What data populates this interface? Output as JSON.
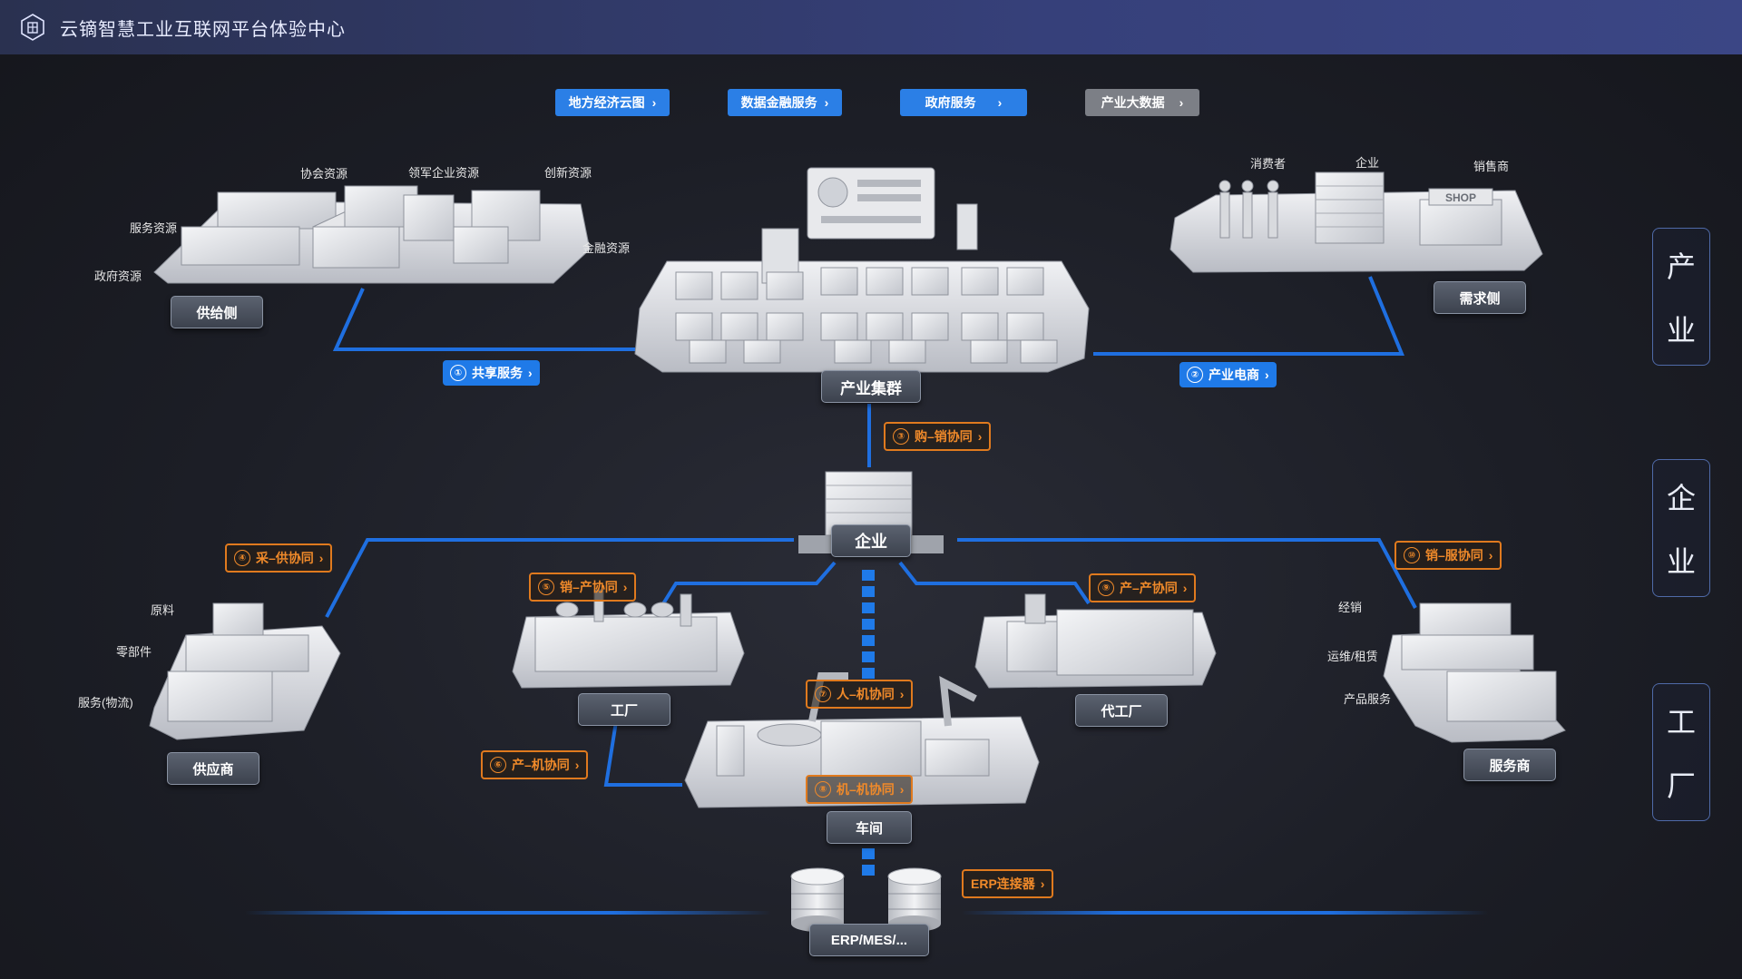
{
  "header": {
    "title": "云镝智慧工业互联网平台体验中心",
    "logo_icon": "building-hexagon-icon"
  },
  "nav": [
    {
      "label": "地方经济云图",
      "color": "#2b7fe6"
    },
    {
      "label": "数据金融服务",
      "color": "#2b7fe6"
    },
    {
      "label": "政府服务",
      "color": "#2b7fe6"
    },
    {
      "label": "产业大数据",
      "color": "#7c7f86"
    }
  ],
  "side_panel": [
    {
      "chars": [
        "产",
        "业"
      ]
    },
    {
      "chars": [
        "企",
        "业"
      ]
    },
    {
      "chars": [
        "工",
        "厂"
      ]
    }
  ],
  "nodes": {
    "supply_side": "供给侧",
    "cluster": "产业集群",
    "demand_side": "需求侧",
    "enterprise": "企业",
    "supplier": "供应商",
    "factory": "工厂",
    "oem": "代工厂",
    "service_provider": "服务商",
    "workshop": "车间",
    "erp": "ERP/MES/..."
  },
  "tags": {
    "shared_service": {
      "num": "①",
      "label": "共享服务"
    },
    "ecommerce": {
      "num": "②",
      "label": "产业电商"
    },
    "purchase_sales": {
      "num": "③",
      "label": "购–销协同"
    },
    "procure_supply": {
      "num": "④",
      "label": "采–供协同"
    },
    "sales_production": {
      "num": "⑤",
      "label": "销–产协同"
    },
    "prod_machine": {
      "num": "⑥",
      "label": "产–机协同"
    },
    "human_machine": {
      "num": "⑦",
      "label": "人–机协同"
    },
    "machine_machine": {
      "num": "⑧",
      "label": "机–机协同"
    },
    "prod_prod": {
      "num": "⑨",
      "label": "产–产协同"
    },
    "sales_service": {
      "num": "⑩",
      "label": "销–服协同"
    },
    "erp_connector": {
      "label": "ERP连接器"
    }
  },
  "supply_labels": {
    "association": "协会资源",
    "leader": "领军企业资源",
    "innovation": "创新资源",
    "service": "服务资源",
    "finance": "金融资源",
    "government": "政府资源"
  },
  "demand_labels": {
    "consumer": "消费者",
    "enterprise": "企业",
    "retailer": "销售商",
    "shop_sign": "SHOP"
  },
  "supplier_labels": {
    "raw": "原料",
    "parts": "零部件",
    "logistics": "服务(物流)"
  },
  "service_labels": {
    "sales": "经销",
    "ops": "运维/租赁",
    "product": "产品服务"
  },
  "colors": {
    "line": "#1f6fe0",
    "accent_orange": "#e07a1e",
    "tag_blue": "#1f7ae8"
  }
}
